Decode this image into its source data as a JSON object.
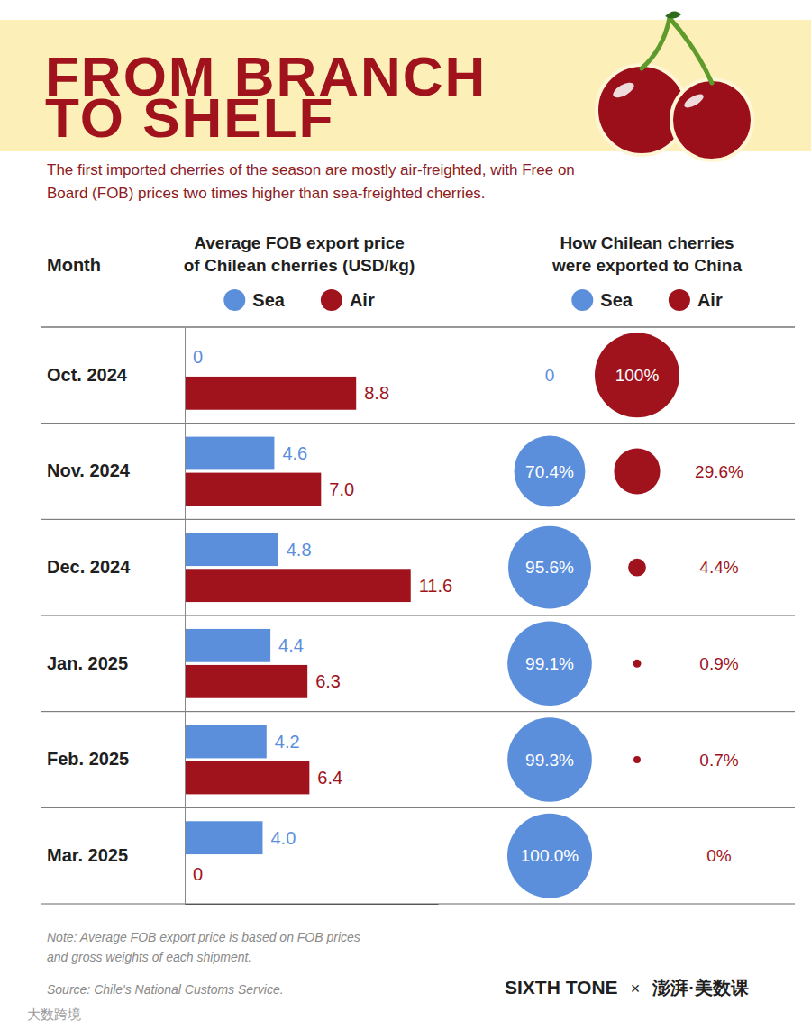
{
  "header": {
    "title": "FROM BRANCH TO SHELF",
    "subtitle": "The first imported cherries of the season are mostly air-freighted, with Free on Board (FOB) prices two times higher than sea-freighted cherries."
  },
  "chart_data": [
    {
      "type": "bar",
      "orientation": "horizontal",
      "title": "Average FOB export price of Chilean cherries (USD/kg)",
      "y_label": "Month",
      "categories": [
        "Oct. 2024",
        "Nov. 2024",
        "Dec. 2024",
        "Jan. 2025",
        "Feb. 2025",
        "Mar. 2025"
      ],
      "series": [
        {
          "name": "Sea",
          "color": "#5b8fdc",
          "values": [
            0,
            4.6,
            4.8,
            4.4,
            4.2,
            4.0
          ],
          "value_labels": [
            "0",
            "4.6",
            "4.8",
            "4.4",
            "4.2",
            "4.0"
          ]
        },
        {
          "name": "Air",
          "color": "#a0131d",
          "values": [
            8.8,
            7.0,
            11.6,
            6.3,
            6.4,
            0
          ],
          "value_labels": [
            "8.8",
            "7.0",
            "11.6",
            "6.3",
            "6.4",
            "0"
          ]
        }
      ],
      "xlim": [
        0,
        13
      ],
      "xticks": [],
      "tick_labels": "y",
      "data_labels": true,
      "legend": "top"
    },
    {
      "type": "bubble",
      "title": "How Chilean cherries were exported to China",
      "series": [
        {
          "name": "Sea",
          "color": "#5b8fdc",
          "values": [
            0,
            70.4,
            95.6,
            99.1,
            99.3,
            100.0
          ],
          "value_labels": [
            "0",
            "70.4%",
            "95.6%",
            "99.1%",
            "99.3%",
            "100.0%"
          ]
        },
        {
          "name": "Air",
          "color": "#a0131d",
          "values": [
            100,
            29.6,
            4.4,
            0.9,
            0.7,
            0
          ],
          "value_labels": [
            "100%",
            "29.6%",
            "4.4%",
            "0.9%",
            "0.7%",
            "0%"
          ]
        }
      ],
      "tick_labels": false,
      "data_labels": true,
      "legend": "top"
    }
  ],
  "footer": {
    "note": "Note: Average FOB export price is based on FOB prices and gross weights of each shipment.",
    "source": "Source: Chile's National Customs Service.",
    "brand": [
      "SIXTH TONE",
      "×",
      "澎湃·美数课"
    ],
    "watermark": "大数跨境"
  }
}
